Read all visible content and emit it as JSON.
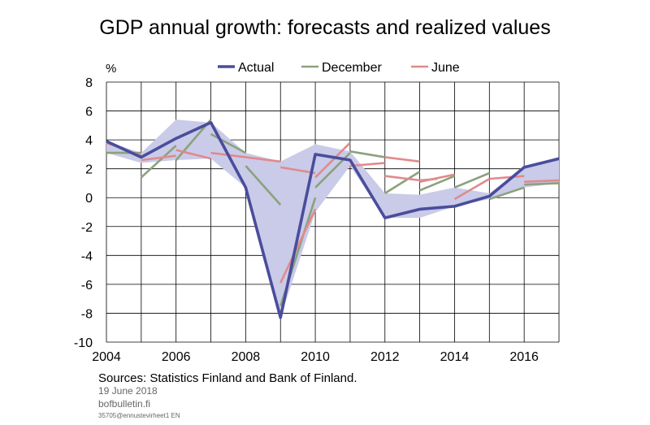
{
  "chart_data": {
    "type": "line",
    "title": "GDP annual growth: forecasts and realized values",
    "ylabel": "%",
    "xlim": [
      2004,
      2017
    ],
    "ylim": [
      -10,
      8
    ],
    "xticks": [
      2004,
      2006,
      2008,
      2010,
      2012,
      2014,
      2016
    ],
    "yticks": [
      8,
      6,
      4,
      2,
      0,
      -2,
      -4,
      -6,
      -8,
      -10
    ],
    "grid": true,
    "legend_position": "top",
    "colors": {
      "Actual": "#4a4d9c",
      "December": "#8aa27c",
      "June": "#e08a8e",
      "band": "#c9cbe8"
    },
    "series": [
      {
        "name": "Actual",
        "x": [
          2004,
          2005,
          2006,
          2007,
          2008,
          2009,
          2010,
          2011,
          2012,
          2013,
          2014,
          2015,
          2016,
          2017
        ],
        "values": [
          3.9,
          2.8,
          4.1,
          5.2,
          0.7,
          -8.3,
          3.0,
          2.6,
          -1.4,
          -0.8,
          -0.6,
          0.1,
          2.1,
          2.7
        ]
      },
      {
        "name": "December",
        "segments": [
          {
            "x": [
              2004,
              2005
            ],
            "values": [
              3.1,
              3.1
            ]
          },
          {
            "x": [
              2005,
              2006
            ],
            "values": [
              1.4,
              3.6
            ]
          },
          {
            "x": [
              2006,
              2007
            ],
            "values": [
              2.6,
              5.4
            ]
          },
          {
            "x": [
              2007,
              2008
            ],
            "values": [
              4.4,
              3.1
            ]
          },
          {
            "x": [
              2008,
              2009
            ],
            "values": [
              2.2,
              -0.5
            ]
          },
          {
            "x": [
              2009,
              2010
            ],
            "values": [
              -7.5,
              0.0
            ]
          },
          {
            "x": [
              2010,
              2011
            ],
            "values": [
              0.7,
              3.1
            ]
          },
          {
            "x": [
              2011,
              2012
            ],
            "values": [
              3.2,
              2.8
            ]
          },
          {
            "x": [
              2012,
              2013
            ],
            "values": [
              0.3,
              1.8
            ]
          },
          {
            "x": [
              2013,
              2014
            ],
            "values": [
              0.5,
              1.5
            ]
          },
          {
            "x": [
              2014,
              2015
            ],
            "values": [
              0.7,
              1.7
            ]
          },
          {
            "x": [
              2015,
              2016
            ],
            "values": [
              -0.1,
              0.7
            ]
          },
          {
            "x": [
              2016,
              2017
            ],
            "values": [
              0.9,
              1.0
            ]
          }
        ]
      },
      {
        "name": "June",
        "segments": [
          {
            "x": [
              2004,
              2005
            ],
            "values": [
              3.8,
              2.9
            ]
          },
          {
            "x": [
              2005,
              2006
            ],
            "values": [
              2.6,
              2.9
            ]
          },
          {
            "x": [
              2006,
              2007
            ],
            "values": [
              3.3,
              2.7
            ]
          },
          {
            "x": [
              2007,
              2008
            ],
            "values": [
              3.1,
              2.8
            ]
          },
          {
            "x": [
              2008,
              2009
            ],
            "values": [
              2.8,
              2.5
            ]
          },
          {
            "x": [
              2009,
              2010
            ],
            "values": [
              2.1,
              1.7
            ]
          },
          {
            "x": [
              2009,
              2010
            ],
            "values": [
              -5.9,
              -0.8
            ]
          },
          {
            "x": [
              2010,
              2011
            ],
            "values": [
              1.4,
              3.8
            ]
          },
          {
            "x": [
              2011,
              2012
            ],
            "values": [
              2.2,
              2.4
            ]
          },
          {
            "x": [
              2012,
              2013
            ],
            "values": [
              1.5,
              1.2
            ]
          },
          {
            "x": [
              2013,
              2013.5
            ],
            "values": [
              1.2,
              1.3
            ]
          },
          {
            "x": [
              2012,
              2013
            ],
            "values": [
              2.8,
              2.5
            ]
          },
          {
            "x": [
              2013,
              2014
            ],
            "values": [
              1.1,
              1.6
            ]
          },
          {
            "x": [
              2014,
              2015
            ],
            "values": [
              -0.1,
              1.3
            ]
          },
          {
            "x": [
              2015,
              2016
            ],
            "values": [
              1.3,
              1.5
            ]
          },
          {
            "x": [
              2016,
              2017
            ],
            "values": [
              1.1,
              1.2
            ]
          }
        ]
      }
    ],
    "band": {
      "x": [
        2004,
        2005,
        2006,
        2007,
        2008,
        2009,
        2010,
        2011,
        2012,
        2013,
        2014,
        2015,
        2016,
        2017
      ],
      "upper": [
        3.9,
        3.1,
        5.4,
        5.2,
        3.1,
        2.5,
        3.7,
        3.2,
        0.3,
        0.2,
        0.7,
        0.3,
        2.1,
        2.7
      ],
      "lower": [
        3.1,
        2.4,
        2.6,
        2.7,
        0.7,
        -8.3,
        -1.0,
        2.2,
        -1.4,
        -1.4,
        -0.6,
        -0.1,
        0.7,
        1.0
      ]
    }
  },
  "footer": {
    "sources": "Sources: Statistics Finland and Bank of Finland.",
    "date": "19 June 2018",
    "site": "bofbulletin.fi",
    "code": "35705@ennustevirheet1   EN"
  }
}
